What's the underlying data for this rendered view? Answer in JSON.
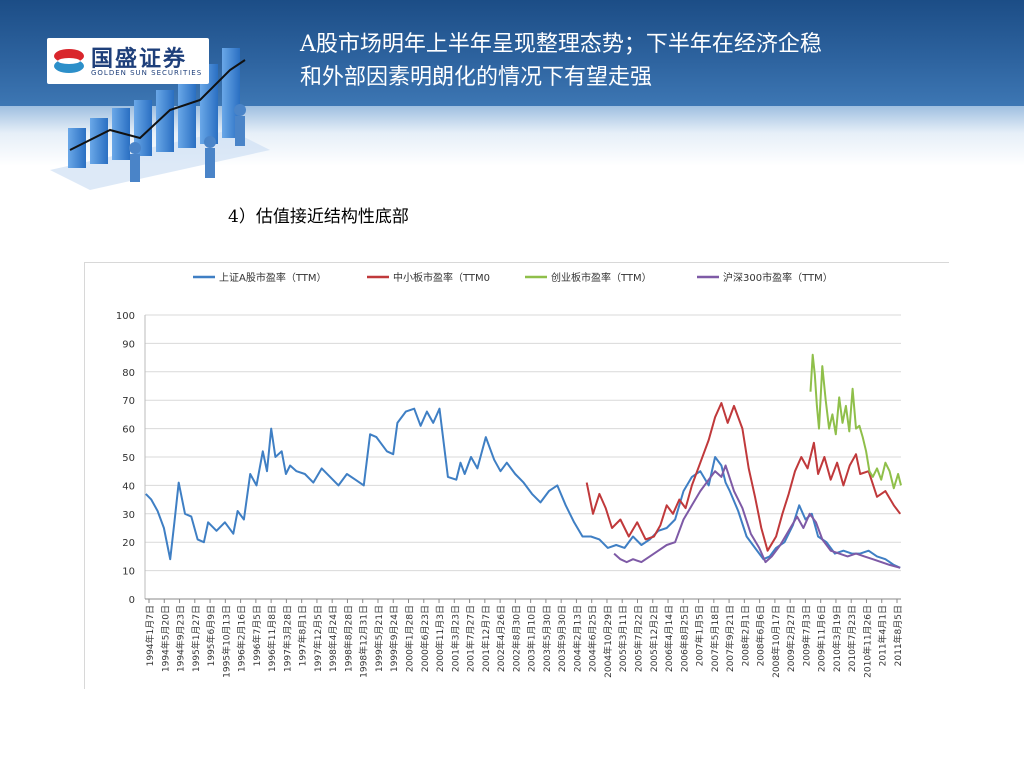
{
  "slide": {
    "title_line1": "A股市场明年上半年呈现整理态势；下半年在经济企稳",
    "title_line2": "和外部因素明朗化的情况下有望走强",
    "subtitle": "4）估值接近结构性底部"
  },
  "logo": {
    "name": "国盛证券",
    "name_en": "GOLDEN SUN SECURITIES"
  },
  "colors": {
    "header": "#2a5d9a",
    "logo_red": "#d9262c",
    "logo_blue": "#1e3f7a"
  },
  "chart_data": {
    "type": "line",
    "title": "",
    "xlabel": "",
    "ylabel": "",
    "ylim": [
      0,
      100
    ],
    "yticks": [
      0,
      10,
      20,
      30,
      40,
      50,
      60,
      70,
      80,
      90,
      100
    ],
    "legend_position": "top",
    "xticks": [
      "1994年1月7日",
      "1994年5月20日",
      "1994年9月23日",
      "1995年1月27日",
      "1995年6月9日",
      "1995年10月13日",
      "1996年2月16日",
      "1996年7月5日",
      "1996年11月8日",
      "1997年3月28日",
      "1997年8月1日",
      "1997年12月5日",
      "1998年4月24日",
      "1998年8月28日",
      "1998年12月31日",
      "1999年5月21日",
      "1999年9月24日",
      "2000年1月28日",
      "2000年6月23日",
      "2000年11月3日",
      "2001年3月23日",
      "2001年7月27日",
      "2001年12月7日",
      "2002年4月26日",
      "2002年8月30日",
      "2003年1月10日",
      "2003年5月30日",
      "2003年9月30日",
      "2004年2月13日",
      "2004年6月25日",
      "2004年10月29日",
      "2005年3月11日",
      "2005年7月22日",
      "2005年12月2日",
      "2006年4月14日",
      "2006年8月25日",
      "2007年1月5日",
      "2007年5月18日",
      "2007年9月21日",
      "2008年2月1日",
      "2008年6月6日",
      "2008年10月17日",
      "2009年2月27日",
      "2009年7月3日",
      "2009年11月6日",
      "2010年3月19日",
      "2010年7月23日",
      "2010年11月26日",
      "2011年4月1日",
      "2011年8月5日"
    ],
    "series": [
      {
        "name": "上证A股市盈率（TTM）",
        "color": "#3f7fc4",
        "x": [
          1994.02,
          1994.15,
          1994.3,
          1994.45,
          1994.6,
          1994.7,
          1994.8,
          1994.95,
          1995.1,
          1995.25,
          1995.4,
          1995.5,
          1995.7,
          1995.9,
          1996.1,
          1996.2,
          1996.35,
          1996.5,
          1996.65,
          1996.8,
          1996.9,
          1997.0,
          1997.1,
          1997.25,
          1997.35,
          1997.45,
          1997.6,
          1997.8,
          1998.0,
          1998.2,
          1998.4,
          1998.6,
          1998.8,
          1999.0,
          1999.2,
          1999.35,
          1999.5,
          1999.6,
          1999.75,
          1999.9,
          2000.0,
          2000.2,
          2000.4,
          2000.55,
          2000.7,
          2000.85,
          2001.0,
          2001.2,
          2001.4,
          2001.5,
          2001.6,
          2001.75,
          2001.9,
          2002.1,
          2002.3,
          2002.45,
          2002.6,
          2002.8,
          2003.0,
          2003.2,
          2003.4,
          2003.6,
          2003.8,
          2004.0,
          2004.2,
          2004.4,
          2004.6,
          2004.8,
          2005.0,
          2005.2,
          2005.4,
          2005.6,
          2005.8,
          2006.0,
          2006.2,
          2006.4,
          2006.6,
          2006.8,
          2007.0,
          2007.2,
          2007.4,
          2007.55,
          2007.7,
          2007.8,
          2007.9,
          2008.1,
          2008.3,
          2008.5,
          2008.7,
          2008.85,
          2009.0,
          2009.2,
          2009.4,
          2009.55,
          2009.7,
          2009.85,
          2010.0,
          2010.2,
          2010.4,
          2010.6,
          2010.8,
          2011.0,
          2011.2,
          2011.4,
          2011.6,
          2011.8,
          2011.95
        ],
        "y": [
          37,
          35,
          31,
          25,
          14,
          27,
          41,
          30,
          29,
          21,
          20,
          27,
          24,
          27,
          23,
          31,
          28,
          44,
          40,
          52,
          45,
          60,
          50,
          52,
          44,
          47,
          45,
          44,
          41,
          46,
          43,
          40,
          44,
          42,
          40,
          58,
          57,
          55,
          52,
          51,
          62,
          66,
          67,
          61,
          66,
          62,
          67,
          43,
          42,
          48,
          44,
          50,
          46,
          57,
          49,
          45,
          48,
          44,
          41,
          37,
          34,
          38,
          40,
          33,
          27,
          22,
          22,
          21,
          18,
          19,
          18,
          22,
          19,
          21,
          24,
          25,
          28,
          38,
          43,
          45,
          40,
          50,
          47,
          41,
          38,
          31,
          22,
          18,
          14,
          15,
          18,
          20,
          26,
          33,
          28,
          30,
          22,
          20,
          16,
          17,
          16,
          16,
          17,
          15,
          14,
          12,
          11
        ]
      },
      {
        "name": "中小板市盈率（TTM0",
        "color": "#c0393b",
        "x": [
          2004.5,
          2004.65,
          2004.8,
          2004.95,
          2005.1,
          2005.3,
          2005.5,
          2005.7,
          2005.9,
          2006.1,
          2006.25,
          2006.4,
          2006.55,
          2006.7,
          2006.85,
          2007.0,
          2007.2,
          2007.4,
          2007.55,
          2007.7,
          2007.85,
          2008.0,
          2008.2,
          2008.35,
          2008.5,
          2008.65,
          2008.8,
          2009.0,
          2009.15,
          2009.3,
          2009.45,
          2009.6,
          2009.75,
          2009.9,
          2010.0,
          2010.15,
          2010.3,
          2010.45,
          2010.6,
          2010.75,
          2010.9,
          2011.0,
          2011.2,
          2011.4,
          2011.6,
          2011.8,
          2011.95
        ],
        "y": [
          41,
          30,
          37,
          32,
          25,
          28,
          22,
          27,
          21,
          22,
          26,
          33,
          30,
          35,
          32,
          40,
          48,
          56,
          64,
          69,
          62,
          68,
          60,
          46,
          36,
          25,
          17,
          22,
          30,
          37,
          45,
          50,
          46,
          55,
          44,
          50,
          42,
          48,
          40,
          47,
          51,
          44,
          45,
          36,
          38,
          33,
          30
        ]
      },
      {
        "name": "创业板市盈率（TTM）",
        "color": "#8fbf4a",
        "x": [
          2009.82,
          2009.87,
          2009.92,
          2009.97,
          2010.02,
          2010.1,
          2010.18,
          2010.26,
          2010.34,
          2010.42,
          2010.5,
          2010.58,
          2010.66,
          2010.74,
          2010.82,
          2010.9,
          2010.98,
          2011.06,
          2011.14,
          2011.22,
          2011.3,
          2011.4,
          2011.5,
          2011.6,
          2011.7,
          2011.8,
          2011.9,
          2011.97
        ],
        "y": [
          73,
          86,
          79,
          68,
          60,
          82,
          70,
          60,
          65,
          58,
          71,
          62,
          68,
          59,
          74,
          60,
          61,
          57,
          52,
          45,
          43,
          46,
          42,
          48,
          45,
          39,
          44,
          40
        ]
      },
      {
        "name": "沪深300市盈率（TTM）",
        "color": "#7e5aa6",
        "x": [
          2005.15,
          2005.3,
          2005.45,
          2005.6,
          2005.8,
          2006.0,
          2006.2,
          2006.4,
          2006.6,
          2006.8,
          2007.0,
          2007.2,
          2007.4,
          2007.55,
          2007.7,
          2007.8,
          2008.0,
          2008.2,
          2008.4,
          2008.6,
          2008.75,
          2008.9,
          2009.1,
          2009.3,
          2009.5,
          2009.65,
          2009.8,
          2009.95,
          2010.1,
          2010.3,
          2010.5,
          2010.7,
          2010.9,
          2011.1,
          2011.3,
          2011.5,
          2011.7,
          2011.95
        ],
        "y": [
          16,
          14,
          13,
          14,
          13,
          15,
          17,
          19,
          20,
          28,
          33,
          38,
          42,
          45,
          43,
          47,
          38,
          32,
          23,
          18,
          13,
          15,
          19,
          24,
          29,
          25,
          30,
          27,
          21,
          17,
          16,
          15,
          16,
          15,
          14,
          13,
          12,
          11
        ]
      }
    ]
  }
}
